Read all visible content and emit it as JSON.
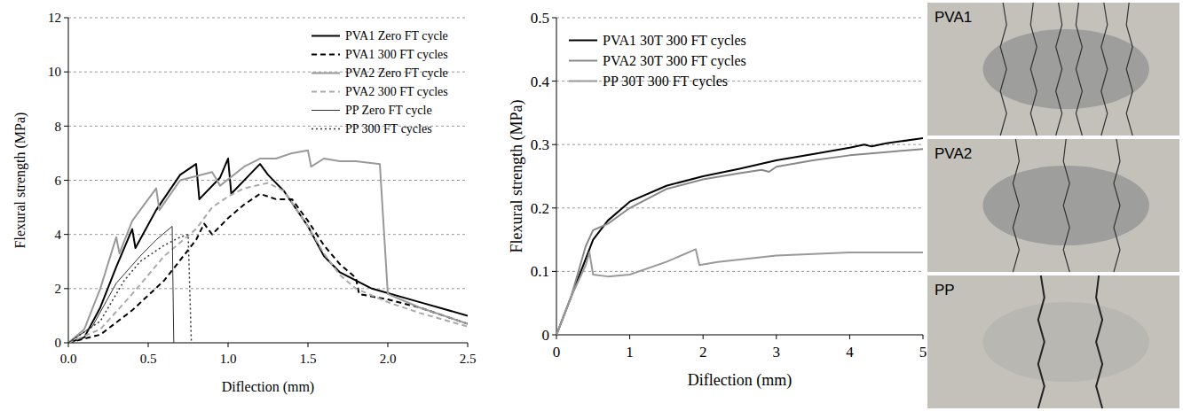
{
  "chart_data": [
    {
      "type": "line",
      "x_label": "Diflection (mm)",
      "y_label": "Flexural strength (MPa)",
      "xlim": [
        0,
        2.5
      ],
      "ylim": [
        0,
        12
      ],
      "xticks": [
        {
          "value": 0,
          "label": "0.0"
        },
        0.5,
        {
          "value": 1,
          "label": "1.0"
        },
        1.5,
        {
          "value": 2,
          "label": "2.0"
        },
        2.5
      ],
      "yticks": [
        0,
        2,
        4,
        6,
        8,
        10,
        12
      ],
      "grid": true,
      "legend": "upper right",
      "series": [
        {
          "name": "PVA1 Zero FT cycle",
          "color": "#000000",
          "line_style": "solid",
          "x": [
            0,
            0.1,
            0.2,
            0.3,
            0.4,
            0.42,
            0.55,
            0.7,
            0.8,
            0.82,
            0.95,
            1.0,
            1.02,
            1.15,
            1.2,
            1.25,
            1.35,
            1.5,
            1.6,
            1.7,
            1.9,
            2.2,
            2.5
          ],
          "values": [
            0,
            0.2,
            1.3,
            2.8,
            4.2,
            3.5,
            4.9,
            6.2,
            6.6,
            5.3,
            6.1,
            6.8,
            5.5,
            6.3,
            6.6,
            6.2,
            5.6,
            4.3,
            3.2,
            2.6,
            2.0,
            1.5,
            1.0
          ]
        },
        {
          "name": "PVA1 300 FT cycles",
          "color": "#000000",
          "line_style": "dashed",
          "x": [
            0,
            0.2,
            0.4,
            0.6,
            0.8,
            0.85,
            0.9,
            1.0,
            1.1,
            1.2,
            1.3,
            1.4,
            1.5,
            1.6,
            1.7,
            1.8,
            1.82,
            2.0,
            2.2,
            2.5
          ],
          "values": [
            0,
            0.3,
            1.2,
            2.3,
            3.8,
            4.4,
            4.0,
            4.6,
            5.1,
            5.5,
            5.3,
            5.3,
            4.5,
            3.6,
            2.9,
            2.4,
            1.8,
            1.6,
            1.3,
            0.7
          ]
        },
        {
          "name": "PVA2 Zero FT cycle",
          "color": "#999999",
          "line_style": "solid",
          "x": [
            0,
            0.1,
            0.2,
            0.3,
            0.32,
            0.4,
            0.5,
            0.55,
            0.57,
            0.7,
            0.9,
            0.95,
            1.1,
            1.2,
            1.3,
            1.4,
            1.5,
            1.52,
            1.6,
            1.7,
            1.8,
            1.95,
            2.0,
            2.2,
            2.5
          ],
          "values": [
            0,
            0.5,
            2.0,
            3.9,
            3.3,
            4.5,
            5.3,
            5.7,
            4.9,
            6.0,
            6.3,
            5.8,
            6.5,
            6.8,
            6.8,
            7.0,
            7.1,
            6.5,
            6.8,
            6.7,
            6.7,
            6.6,
            1.8,
            1.3,
            0.7
          ]
        },
        {
          "name": "PVA2 300 FT cycles",
          "color": "#aaaaaa",
          "line_style": "dashed",
          "x": [
            0,
            0.2,
            0.4,
            0.6,
            0.8,
            0.9,
            1.0,
            1.1,
            1.25,
            1.35,
            1.5,
            1.6,
            1.7,
            1.8,
            2.0,
            2.2,
            2.5
          ],
          "values": [
            0,
            0.5,
            1.8,
            3.2,
            4.2,
            5.0,
            5.4,
            5.7,
            5.9,
            5.6,
            4.3,
            3.3,
            2.5,
            2.0,
            1.5,
            1.1,
            0.6
          ]
        },
        {
          "name": "PP Zero FT cycle",
          "color": "#333333",
          "line_style": "thin",
          "x": [
            0,
            0.15,
            0.3,
            0.45,
            0.55,
            0.65,
            0.66
          ],
          "values": [
            0,
            0.6,
            2.2,
            3.2,
            3.8,
            4.3,
            0
          ]
        },
        {
          "name": "PP 300 FT cycles",
          "color": "#333333",
          "line_style": "dotted",
          "x": [
            0,
            0.2,
            0.35,
            0.45,
            0.6,
            0.7,
            0.75,
            0.77
          ],
          "values": [
            0,
            0.8,
            2.3,
            3.0,
            3.6,
            3.9,
            4.0,
            0
          ]
        }
      ]
    },
    {
      "type": "line",
      "x_label": "Diflection (mm)",
      "y_label": "Flexural strength (MPa)",
      "xlim": [
        0,
        5
      ],
      "ylim": [
        0,
        0.5
      ],
      "xticks": [
        0,
        1,
        2,
        3,
        4,
        5
      ],
      "yticks": [
        0,
        0.1,
        0.2,
        0.3,
        0.4,
        0.5
      ],
      "grid": true,
      "legend": "upper left",
      "series": [
        {
          "name": "PVA1 30T 300 FT cycles",
          "color": "#000000",
          "line_style": "solid",
          "x": [
            0,
            0.2,
            0.4,
            0.5,
            0.7,
            1,
            1.5,
            2,
            2.5,
            3,
            3.5,
            4,
            4.2,
            4.3,
            4.5,
            5
          ],
          "values": [
            0,
            0.06,
            0.12,
            0.15,
            0.18,
            0.21,
            0.235,
            0.25,
            0.262,
            0.275,
            0.285,
            0.295,
            0.3,
            0.297,
            0.302,
            0.31
          ]
        },
        {
          "name": "PVA2 30T 300 FT cycles",
          "color": "#888888",
          "line_style": "solid",
          "x": [
            0,
            0.2,
            0.4,
            0.5,
            0.7,
            1,
            1.5,
            2,
            2.5,
            2.8,
            2.9,
            3,
            3.5,
            4,
            4.5,
            5
          ],
          "values": [
            0,
            0.06,
            0.14,
            0.165,
            0.175,
            0.2,
            0.23,
            0.245,
            0.255,
            0.26,
            0.257,
            0.265,
            0.275,
            0.283,
            0.288,
            0.293
          ]
        },
        {
          "name": "PP 30T 300 FT cycles",
          "color": "#999999",
          "line_style": "solid",
          "x": [
            0,
            0.2,
            0.4,
            0.45,
            0.5,
            0.7,
            1,
            1.5,
            1.9,
            1.95,
            2.2,
            3,
            4,
            5
          ],
          "values": [
            0,
            0.06,
            0.11,
            0.13,
            0.095,
            0.092,
            0.095,
            0.115,
            0.135,
            0.11,
            0.115,
            0.125,
            0.13,
            0.13
          ]
        }
      ]
    }
  ],
  "photos": [
    "PVA1",
    "PVA2",
    "PP"
  ]
}
